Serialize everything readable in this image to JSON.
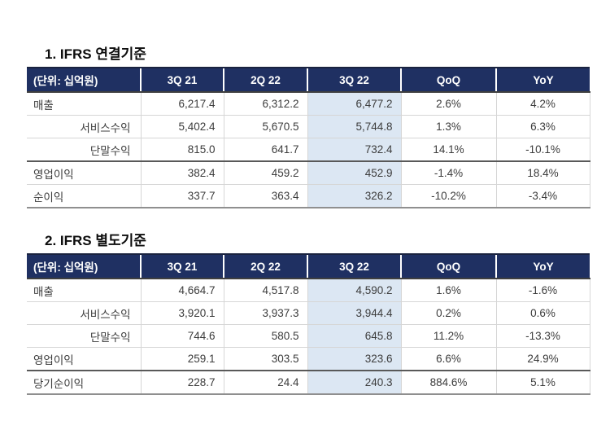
{
  "document": {
    "background": "#ffffff"
  },
  "colors": {
    "header_bg": "#1F3062",
    "header_text": "#ffffff",
    "highlight_col_bg": "#DCE7F3",
    "body_text": "#3c3c3c",
    "title_text": "#0d0d0d",
    "thick_separator": "#595959",
    "thin_rule": "#d6d6d6"
  },
  "tables": [
    {
      "title": "1. IFRS 연결기준",
      "unit_label": "(단위: 십억원)",
      "columns": [
        "3Q 21",
        "2Q 22",
        "3Q 22",
        "QoQ",
        "YoY"
      ],
      "highlight_column": "3Q 22",
      "rows": [
        {
          "label": "매출",
          "values": [
            "6,217.4",
            "6,312.2",
            "6,477.2",
            "2.6%",
            "4.2%"
          ]
        },
        {
          "label": "서비스수익",
          "values": [
            "5,402.4",
            "5,670.5",
            "5,744.8",
            "1.3%",
            "6.3%"
          ]
        },
        {
          "label": "단말수익",
          "values": [
            "815.0",
            "641.7",
            "732.4",
            "14.1%",
            "-10.1%"
          ]
        },
        {
          "label": "영업이익",
          "values": [
            "382.4",
            "459.2",
            "452.9",
            "-1.4%",
            "18.4%"
          ]
        },
        {
          "label": "순이익",
          "values": [
            "337.7",
            "363.4",
            "326.2",
            "-10.2%",
            "-3.4%"
          ]
        }
      ]
    },
    {
      "title": "2. IFRS 별도기준",
      "unit_label": "(단위: 십억원)",
      "columns": [
        "3Q 21",
        "2Q 22",
        "3Q 22",
        "QoQ",
        "YoY"
      ],
      "highlight_column": "3Q 22",
      "rows": [
        {
          "label": "매출",
          "values": [
            "4,664.7",
            "4,517.8",
            "4,590.2",
            "1.6%",
            "-1.6%"
          ]
        },
        {
          "label": "서비스수익",
          "values": [
            "3,920.1",
            "3,937.3",
            "3,944.4",
            "0.2%",
            "0.6%"
          ]
        },
        {
          "label": "단말수익",
          "values": [
            "744.6",
            "580.5",
            "645.8",
            "11.2%",
            "-13.3%"
          ]
        },
        {
          "label": "영업이익",
          "values": [
            "259.1",
            "303.5",
            "323.6",
            "6.6%",
            "24.9%"
          ]
        },
        {
          "label": "당기순이익",
          "values": [
            "228.7",
            "24.4",
            "240.3",
            "884.6%",
            "5.1%"
          ]
        }
      ]
    }
  ]
}
